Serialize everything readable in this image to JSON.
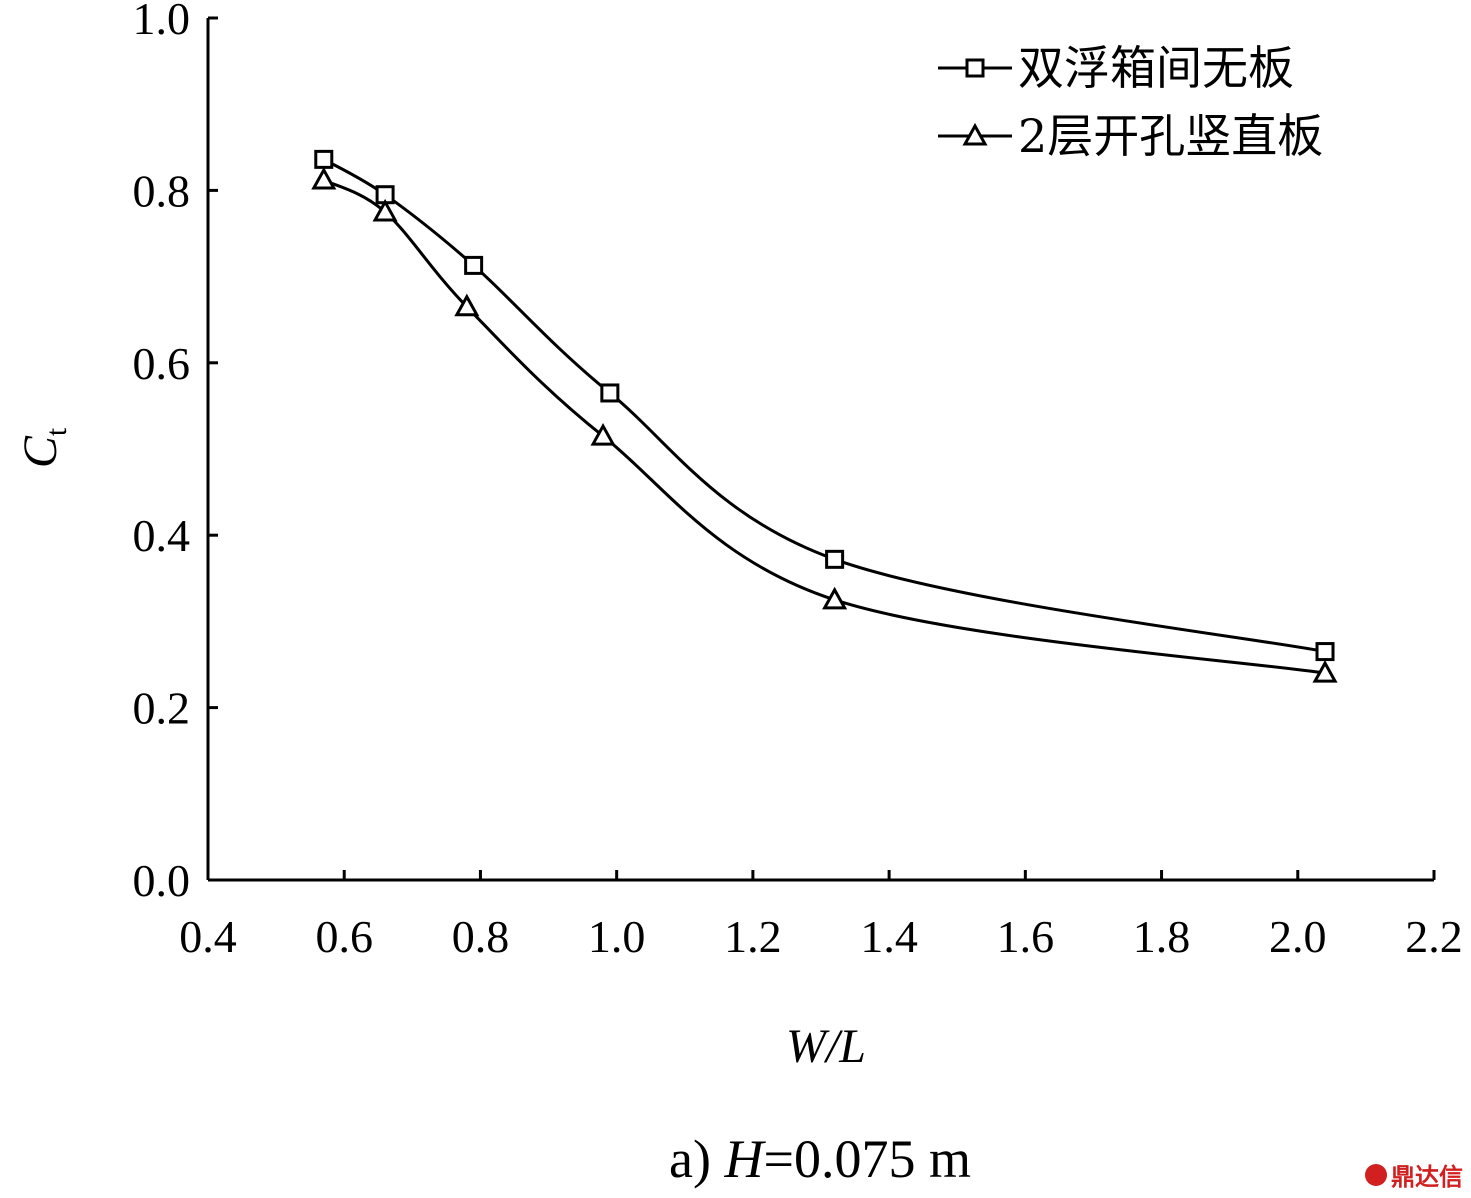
{
  "chart_data": {
    "type": "line",
    "xlabel": "W/L",
    "ylabel": "C",
    "ylabel_sub": "t",
    "xlim": [
      0.4,
      2.2
    ],
    "ylim": [
      0.0,
      1.0
    ],
    "xticks": [
      "0.4",
      "0.6",
      "0.8",
      "1.0",
      "1.2",
      "1.4",
      "1.6",
      "1.8",
      "2.0",
      "2.2"
    ],
    "yticks": [
      "0.0",
      "0.2",
      "0.4",
      "0.6",
      "0.8",
      "1.0"
    ],
    "grid": false,
    "legend_position": "top-right",
    "series": [
      {
        "name": "双浮箱间无板",
        "marker": "square",
        "x": [
          0.57,
          0.66,
          0.79,
          0.99,
          1.32,
          2.04
        ],
        "y": [
          0.836,
          0.795,
          0.713,
          0.565,
          0.372,
          0.265
        ]
      },
      {
        "name": "2层开孔竖直板",
        "marker": "triangle",
        "x": [
          0.57,
          0.66,
          0.78,
          0.98,
          1.32,
          2.04
        ],
        "y": [
          0.812,
          0.775,
          0.665,
          0.515,
          0.325,
          0.24
        ]
      }
    ],
    "caption": {
      "prefix": "a) ",
      "var": "H",
      "suffix": "=0.075 m"
    }
  },
  "watermark": {
    "text": "鼎达信",
    "color": "#d21f1f"
  }
}
